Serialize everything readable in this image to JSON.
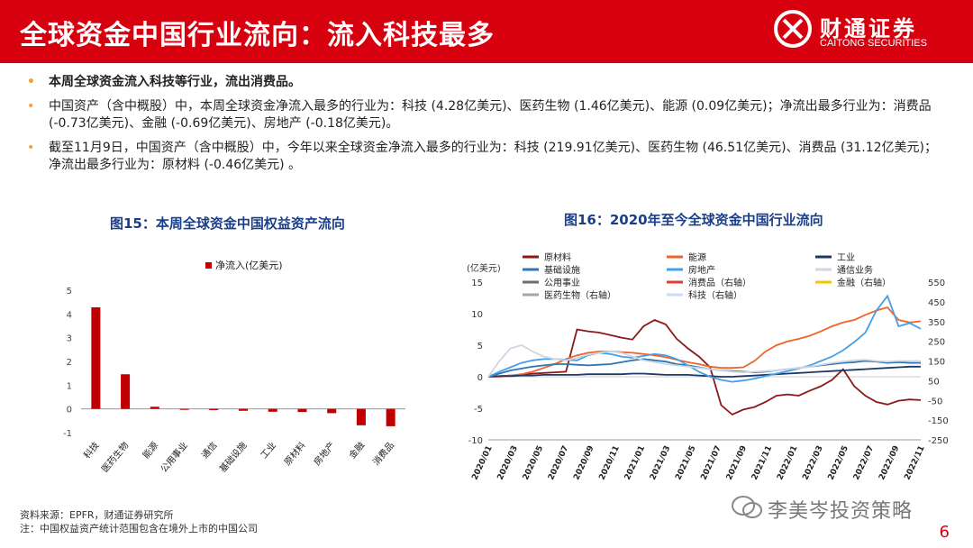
{
  "header": {
    "title": "全球资金中国行业流向：流入科技最多",
    "logo_name": "财通证券",
    "logo_sub": "CAITONG SECURITIES"
  },
  "bullets": [
    "本周全球资金流入科技等行业，流出消费品。",
    "中国资产（含中概股）中，本周全球资金净流入最多的行业为：科技 (4.28亿美元)、医药生物 (1.46亿美元)、能源 (0.09亿美元)；净流出最多行业为：消费品 (-0.73亿美元)、金融 (-0.69亿美元)、房地产 (-0.18亿美元)。",
    "截至11月9日，中国资产（含中概股）中，今年以来全球资金净流入最多的行业为：科技 (219.91亿美元)、医药生物 (46.51亿美元)、消费品 (31.12亿美元)；净流出最多行业为：原材料 (-0.46亿美元) 。"
  ],
  "chart_data": [
    {
      "type": "bar",
      "title": "图15：本周全球资金中国权益资产流向",
      "series": [
        {
          "name": "净流入(亿美元)",
          "values": [
            4.28,
            1.46,
            0.09,
            -0.04,
            -0.05,
            -0.08,
            -0.12,
            -0.13,
            -0.18,
            -0.69,
            -0.73
          ]
        }
      ],
      "categories": [
        "科技",
        "医药生物",
        "能源",
        "公用事业",
        "通信",
        "基础设施",
        "工业",
        "原材料",
        "房地产",
        "金融",
        "消费品"
      ],
      "ylim": [
        -1,
        5
      ],
      "yticks": [
        "5",
        "4",
        "3",
        "2",
        "1",
        "0",
        "-1"
      ],
      "color": "#c00000"
    },
    {
      "type": "line",
      "title": "图16：2020年至今全球资金中国行业流向",
      "ylabel": "(亿美元)",
      "ylim": [
        -10,
        15
      ],
      "yticks_left": [
        "15",
        "10",
        "5",
        "0",
        "-5",
        "-10"
      ],
      "ylim_right": [
        -250,
        550
      ],
      "yticks_right": [
        "550",
        "450",
        "350",
        "250",
        "150",
        "50",
        "-50",
        "-150",
        "-250"
      ],
      "x_labels": [
        "2020/01",
        "2020/03",
        "2020/05",
        "2020/07",
        "2020/09",
        "2020/11",
        "2021/01",
        "2021/03",
        "2021/05",
        "2021/07",
        "2021/09",
        "2021/11",
        "2022/01",
        "2022/03",
        "2022/05",
        "2022/07",
        "2022/09",
        "2022/11"
      ],
      "legend": [
        "原材料",
        "能源",
        "工业",
        "基础设施",
        "房地产",
        "通信业务",
        "公用事业",
        "消费品（右轴）",
        "金融（右轴）",
        "医药生物（右轴）",
        "科技（右轴）"
      ],
      "series": [
        {
          "name": "原材料",
          "axis": "left",
          "color": "#8b1a1a",
          "values": [
            0,
            0.1,
            0.2,
            0.3,
            0.5,
            0.6,
            0.7,
            0.8,
            7.5,
            7.2,
            7.0,
            6.6,
            6.2,
            5.9,
            8.0,
            9.0,
            8.3,
            6.0,
            4.5,
            3.2,
            1.5,
            -4.5,
            -6.0,
            -5.2,
            -4.8,
            -4.0,
            -3.0,
            -2.8,
            -3.0,
            -2.2,
            -1.5,
            -0.5,
            1.2,
            -1.5,
            -3.0,
            -4.0,
            -4.4,
            -3.8,
            -3.6,
            -3.7
          ]
        },
        {
          "name": "能源",
          "axis": "left",
          "color": "#f0632b",
          "values": [
            0,
            0,
            0.2,
            0.4,
            0.8,
            1.4,
            2.0,
            2.8,
            3.4,
            3.8,
            4.0,
            4.0,
            3.9,
            3.8,
            3.6,
            3.4,
            3.1,
            2.7,
            2.3,
            2.0,
            1.6,
            1.4,
            1.4,
            1.5,
            2.5,
            4.0,
            5.0,
            5.6,
            6.0,
            6.5,
            7.2,
            8.0,
            8.6,
            9.0,
            9.8,
            10.5,
            11.0,
            9.0,
            8.6,
            8.8
          ]
        },
        {
          "name": "工业",
          "axis": "left",
          "color": "#1f3864",
          "values": [
            0,
            0.1,
            0.1,
            0.2,
            0.2,
            0.3,
            0.3,
            0.3,
            0.3,
            0.4,
            0.4,
            0.4,
            0.4,
            0.5,
            0.5,
            0.4,
            0.3,
            0.3,
            0.3,
            0.2,
            0.1,
            0,
            0,
            0.1,
            0.2,
            0.3,
            0.4,
            0.5,
            0.6,
            0.7,
            0.8,
            0.9,
            1.0,
            1.1,
            1.2,
            1.3,
            1.4,
            1.5,
            1.6,
            1.6
          ]
        },
        {
          "name": "基础设施",
          "axis": "left",
          "color": "#2e75b6",
          "values": [
            0,
            0.5,
            1.0,
            1.3,
            1.6,
            1.8,
            2.0,
            2.0,
            1.9,
            1.8,
            1.9,
            2.0,
            2.3,
            2.6,
            2.8,
            2.6,
            2.4,
            2.0,
            1.8,
            1.5,
            1.2,
            1.0,
            0.9,
            0.8,
            0.7,
            0.8,
            1.0,
            1.2,
            1.4,
            1.6,
            1.8,
            2.0,
            2.2,
            2.3,
            2.5,
            2.4,
            2.2,
            2.3,
            2.2,
            2.2
          ]
        },
        {
          "name": "房地产",
          "axis": "left",
          "color": "#43a0e8",
          "values": [
            0,
            0.8,
            1.5,
            2.2,
            2.6,
            2.8,
            2.8,
            2.7,
            2.6,
            3.4,
            3.8,
            3.6,
            3.2,
            3.0,
            3.3,
            3.6,
            3.4,
            2.8,
            1.8,
            0.8,
            0.0,
            -0.5,
            -0.8,
            -0.6,
            -0.3,
            0.1,
            0.5,
            0.9,
            1.3,
            1.8,
            2.5,
            3.2,
            4.2,
            5.5,
            7.0,
            10.5,
            12.8,
            8.0,
            8.5,
            7.6
          ]
        },
        {
          "name": "通信业务",
          "axis": "left",
          "color": "#cfd6e0",
          "values": [
            0,
            2.5,
            4.5,
            5.0,
            4.0,
            3.2,
            2.8,
            2.6,
            3.0,
            3.5,
            3.8,
            4.0,
            3.8,
            3.2,
            2.6,
            2.3,
            2.0,
            1.8,
            1.6,
            1.4,
            1.2,
            1.0,
            0.8,
            0.7,
            0.8,
            0.9,
            1.0,
            1.2,
            1.4,
            1.6,
            1.9,
            2.2,
            2.4,
            2.6,
            2.7,
            2.5,
            2.4,
            2.5,
            2.5,
            2.5
          ]
        }
      ]
    }
  ],
  "footer": {
    "source": "资料来源：EPFR，财通证券研究所",
    "note": "注：中国权益资产统计范围包含在境外上市的中国公司"
  },
  "watermark": "李美岑投资策略",
  "page_number": "6"
}
